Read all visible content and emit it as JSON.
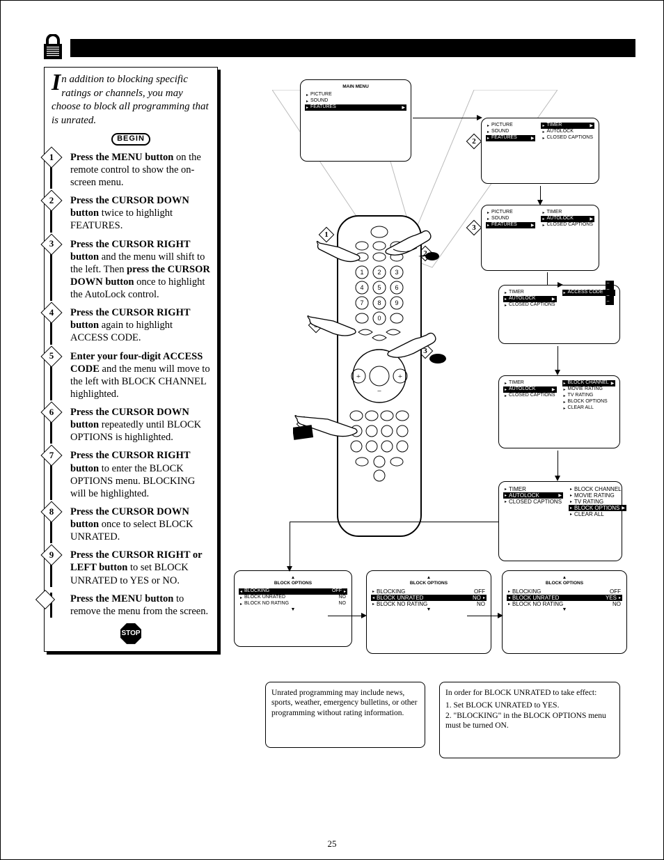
{
  "pageNumber": "25",
  "intro": "n addition to blocking specific ratings or channels, you may choose to block all programming that is unrated.",
  "introDrop": "I",
  "beginLabel": "BEGIN",
  "stopLabel": "STOP",
  "steps": {
    "s1": {
      "num": "1",
      "bold": "Press the MENU button",
      "rest": " on the remote control to show the on-screen menu."
    },
    "s2": {
      "num": "2",
      "bold": "Press the CURSOR DOWN button",
      "rest": " twice to highlight FEATURES."
    },
    "s3": {
      "num": "3",
      "bold1": "Press the CURSOR RIGHT button",
      "mid": " and the menu will shift to the left. Then ",
      "bold2": "press the CURSOR DOWN button",
      "rest": " once to highlight the AutoLock control."
    },
    "s4": {
      "num": "4",
      "bold": "Press the CURSOR RIGHT button",
      "rest": " again to highlight ACCESS CODE."
    },
    "s5": {
      "num": "5",
      "bold": "Enter your four-digit ACCESS CODE",
      "rest": " and the menu will move to the left with BLOCK CHANNEL highlighted."
    },
    "s6": {
      "num": "6",
      "bold": "Press the CURSOR DOWN button",
      "rest": " repeatedly until BLOCK OPTIONS is highlighted."
    },
    "s7": {
      "num": "7",
      "bold": "Press the CURSOR RIGHT button",
      "rest": " to enter the BLOCK OPTIONS menu. BLOCKING will be highlighted."
    },
    "s8": {
      "num": "8",
      "bold": "Press the CURSOR DOWN button",
      "rest": " once to select BLOCK UNRATED."
    },
    "s9": {
      "num": "9",
      "bold": "Press the CURSOR RIGHT or LEFT button",
      "rest": " to set BLOCK UNRATED to YES or NO."
    },
    "sE": {
      "bold": "Press the MENU button",
      "rest": " to remove the menu from the screen."
    }
  },
  "screens": {
    "main": {
      "title": "MAIN MENU",
      "items": [
        "PICTURE",
        "SOUND",
        "FEATURES"
      ],
      "highlight": 2
    },
    "features1": {
      "leftItems": [
        "PICTURE",
        "SOUND",
        "FEATURES"
      ],
      "rightItems": [
        "TIMER",
        "AUTOLOCK",
        "CLOSED CAPTIONS"
      ],
      "rightHighlight": 0
    },
    "features2": {
      "leftItems": [
        "PICTURE",
        "SOUND",
        "FEATURES"
      ],
      "rightItems": [
        "TIMER",
        "AUTOLOCK",
        "CLOSED CAPTIONS"
      ],
      "rightHighlight": 1
    },
    "access": {
      "leftItems": [
        "TIMER",
        "AUTOLOCK",
        "CLOSED CAPTIONS"
      ],
      "rightLabel": "ACCESS CODE",
      "rightVal": "– – – –"
    },
    "autolock1": {
      "leftItems": [
        "TIMER",
        "AUTOLOCK",
        "CLOSED CAPTIONS"
      ],
      "rightItems": [
        "BLOCK CHANNEL",
        "MOVIE RATING",
        "TV RATING",
        "BLOCK OPTIONS",
        "CLEAR ALL"
      ],
      "rightHighlight": 0
    },
    "autolock2": {
      "leftItems": [
        "TIMER",
        "AUTOLOCK",
        "CLOSED CAPTIONS"
      ],
      "rightItems": [
        "BLOCK CHANNEL",
        "MOVIE RATING",
        "TV RATING",
        "BLOCK OPTIONS",
        "CLEAR ALL"
      ],
      "rightHighlight": 3
    },
    "blockopt1": {
      "title": "BLOCK OPTIONS",
      "rows": [
        {
          "lab": "BLOCKING",
          "val": "OFF",
          "hl": true
        },
        {
          "lab": "BLOCK UNRATED",
          "val": "NO"
        },
        {
          "lab": "BLOCK NO RATING",
          "val": "NO"
        }
      ]
    },
    "blockopt2": {
      "title": "BLOCK OPTIONS",
      "rows": [
        {
          "lab": "BLOCKING",
          "val": "OFF"
        },
        {
          "lab": "BLOCK UNRATED",
          "val": "NO",
          "hl": true
        },
        {
          "lab": "BLOCK NO RATING",
          "val": "NO"
        }
      ]
    },
    "blockopt3": {
      "title": "BLOCK OPTIONS",
      "rows": [
        {
          "lab": "BLOCKING",
          "val": "OFF"
        },
        {
          "lab": "BLOCK UNRATED",
          "val": "YES",
          "hl": true
        },
        {
          "lab": "BLOCK NO RATING",
          "val": "NO"
        }
      ]
    }
  },
  "note1": "Unrated programming may include news, sports, weather, emergency bulletins, or other programming without rating information.",
  "note2": {
    "lead": "In order for BLOCK UNRATED to take effect:",
    "l1": "1. Set BLOCK UNRATED to YES.",
    "l2": "2. \"BLOCKING\" in the BLOCK OPTIONS menu must be turned ON."
  },
  "colors": {
    "black": "#000000",
    "white": "#ffffff"
  }
}
